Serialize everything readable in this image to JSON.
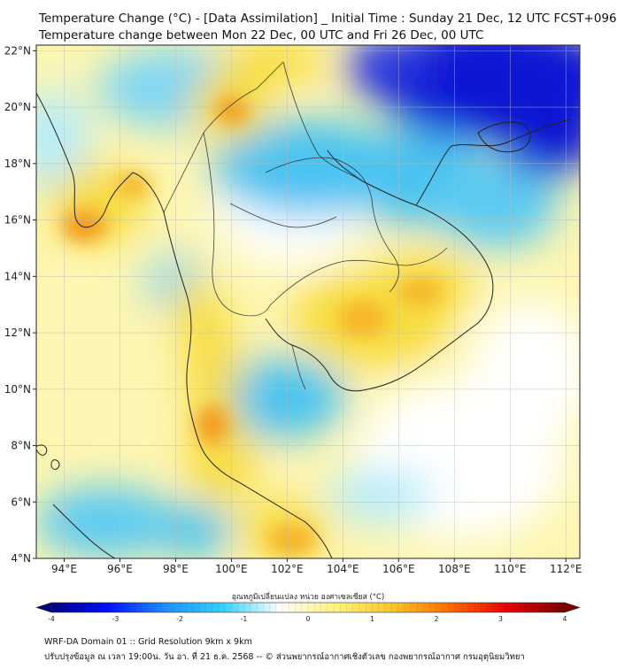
{
  "title": {
    "line1": "Temperature Change (°C) - [Data Assimilation] _ Initial Time : Sunday 21 Dec, 12 UTC FCST+096",
    "line2": "Temperature change between Mon 22 Dec, 00 UTC and Fri 26 Dec, 00 UTC"
  },
  "map": {
    "lon_range": [
      93,
      112.5
    ],
    "lat_range": [
      4,
      22.2
    ],
    "lon_ticks": [
      "94°E",
      "96°E",
      "98°E",
      "100°E",
      "102°E",
      "104°E",
      "106°E",
      "108°E",
      "110°E",
      "112°E"
    ],
    "lat_ticks": [
      "4°N",
      "6°N",
      "8°N",
      "10°N",
      "12°N",
      "14°N",
      "16°N",
      "18°N",
      "20°N",
      "22°N"
    ],
    "gridlines": true,
    "colors": {
      "deep_cold": "#0a14d2",
      "cold": "#49c3f1",
      "light_cold": "#b6ecfb",
      "neutral": "#ffffff",
      "light_warm": "#fdf6b2",
      "warm": "#f8dc3c",
      "hot": "#f39a1e",
      "coast": "#222222"
    }
  },
  "colorbar": {
    "label": "อุณหภูมิเปลี่ยนแปลง หน่วย องศาเซลเซียส (°C)",
    "ticks": [
      "-4",
      "-3",
      "-2",
      "-1",
      "0",
      "1",
      "2",
      "3",
      "4"
    ],
    "min": -4,
    "max": 4,
    "stops": [
      "#00007f",
      "#0010ff",
      "#1e90ff",
      "#33d2ff",
      "#ffffff",
      "#fff27a",
      "#fcc62a",
      "#ff6a00",
      "#e60000",
      "#7a0000"
    ]
  },
  "footer": {
    "line1": "WRF-DA Domain 01 :: Grid Resolution 9km x 9km",
    "line2": "ปรับปรุงข้อมูล ณ เวลา 19:00น. วัน อา. ที่ 21 ธ.ค. 2568 -- © ส่วนพยากรณ์อากาศเชิงตัวเลข กองพยากรณ์อากาศ กรมอุตุนิยมวิทยา"
  }
}
